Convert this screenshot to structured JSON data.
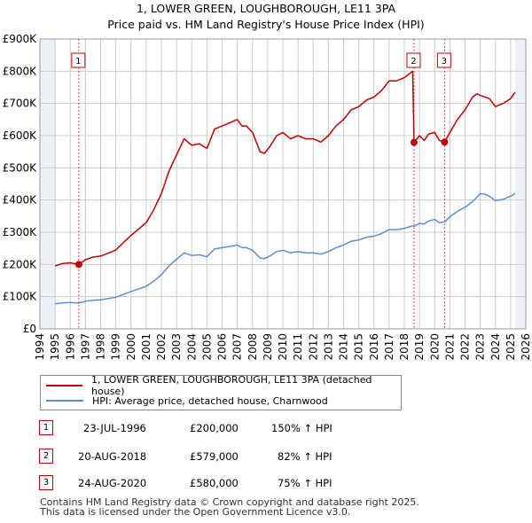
{
  "title": "1, LOWER GREEN, LOUGHBOROUGH, LE11 3PA",
  "subtitle": "Price paid vs. HM Land Registry's House Price Index (HPI)",
  "colors": {
    "property": "#c00000",
    "hpi": "#5b8fd0",
    "grid": "#cccccc",
    "band": "#eef0f7"
  },
  "chart_data": {
    "type": "line",
    "xlim": [
      1994,
      2026
    ],
    "ylim": [
      0,
      900000
    ],
    "x_ticks": [
      "1994",
      "1995",
      "1996",
      "1997",
      "1998",
      "1999",
      "2000",
      "2001",
      "2002",
      "2003",
      "2004",
      "2005",
      "2006",
      "2007",
      "2008",
      "2009",
      "2010",
      "2011",
      "2012",
      "2013",
      "2014",
      "2015",
      "2016",
      "2017",
      "2018",
      "2019",
      "2020",
      "2021",
      "2022",
      "2023",
      "2024",
      "2025",
      "2026"
    ],
    "y_ticks": [
      {
        "value": 0,
        "label": "£0"
      },
      {
        "value": 100000,
        "label": "£100K"
      },
      {
        "value": 200000,
        "label": "£200K"
      },
      {
        "value": 300000,
        "label": "£300K"
      },
      {
        "value": 400000,
        "label": "£400K"
      },
      {
        "value": 500000,
        "label": "£500K"
      },
      {
        "value": 600000,
        "label": "£600K"
      },
      {
        "value": 700000,
        "label": "£700K"
      },
      {
        "value": 800000,
        "label": "£800K"
      },
      {
        "value": 900000,
        "label": "£900K"
      }
    ],
    "data_range": [
      1995.0,
      2025.3
    ],
    "series": [
      {
        "name": "1, LOWER GREEN, LOUGHBOROUGH, LE11 3PA (detached house)",
        "x": [
          1995.0,
          1995.5,
          1996.0,
          1996.56,
          1997.0,
          1997.5,
          1998.0,
          1998.5,
          1999.0,
          1999.5,
          2000.0,
          2000.5,
          2001.0,
          2001.5,
          2002.0,
          2002.5,
          2003.0,
          2003.5,
          2004.0,
          2004.5,
          2005.0,
          2005.5,
          2006.0,
          2006.5,
          2007.0,
          2007.3,
          2007.6,
          2008.0,
          2008.5,
          2008.8,
          2009.2,
          2009.6,
          2010.0,
          2010.5,
          2011.0,
          2011.5,
          2012.0,
          2012.5,
          2013.0,
          2013.5,
          2014.0,
          2014.5,
          2015.0,
          2015.5,
          2016.0,
          2016.5,
          2017.0,
          2017.5,
          2018.0,
          2018.4,
          2018.55,
          2018.64,
          2019.0,
          2019.3,
          2019.6,
          2020.0,
          2020.3,
          2020.65,
          2021.0,
          2021.5,
          2022.0,
          2022.5,
          2022.8,
          2023.0,
          2023.3,
          2023.6,
          2024.0,
          2024.5,
          2025.0,
          2025.3
        ],
        "values": [
          195000,
          203000,
          205000,
          200000,
          215000,
          223000,
          226000,
          235000,
          245000,
          268000,
          290000,
          310000,
          330000,
          370000,
          420000,
          490000,
          540000,
          590000,
          570000,
          575000,
          560000,
          620000,
          630000,
          640000,
          650000,
          630000,
          630000,
          610000,
          550000,
          545000,
          570000,
          600000,
          610000,
          590000,
          600000,
          590000,
          590000,
          580000,
          600000,
          630000,
          650000,
          680000,
          690000,
          710000,
          720000,
          740000,
          770000,
          770000,
          780000,
          795000,
          800000,
          579000,
          600000,
          585000,
          605000,
          610000,
          585000,
          580000,
          610000,
          650000,
          680000,
          720000,
          730000,
          725000,
          720000,
          715000,
          690000,
          700000,
          715000,
          735000
        ],
        "color": "#c00000"
      },
      {
        "name": "HPI: Average price, detached house, Charnwood",
        "x": [
          1995.0,
          1995.5,
          1996.0,
          1996.56,
          1997.0,
          1997.5,
          1998.0,
          1998.5,
          1999.0,
          1999.5,
          2000.0,
          2000.5,
          2001.0,
          2001.5,
          2002.0,
          2002.5,
          2003.0,
          2003.5,
          2004.0,
          2004.5,
          2005.0,
          2005.5,
          2006.0,
          2006.5,
          2007.0,
          2007.3,
          2007.6,
          2008.0,
          2008.5,
          2008.8,
          2009.2,
          2009.6,
          2010.0,
          2010.5,
          2011.0,
          2011.5,
          2012.0,
          2012.5,
          2013.0,
          2013.5,
          2014.0,
          2014.5,
          2015.0,
          2015.5,
          2016.0,
          2016.5,
          2017.0,
          2017.5,
          2018.0,
          2018.4,
          2018.55,
          2018.64,
          2019.0,
          2019.3,
          2019.6,
          2020.0,
          2020.3,
          2020.65,
          2021.0,
          2021.5,
          2022.0,
          2022.5,
          2022.8,
          2023.0,
          2023.3,
          2023.6,
          2024.0,
          2024.5,
          2025.0,
          2025.3
        ],
        "values": [
          78000,
          81000,
          82000,
          80000,
          86000,
          89000,
          90000,
          94000,
          98000,
          107000,
          116000,
          124000,
          132000,
          148000,
          168000,
          196000,
          216000,
          236000,
          228000,
          230000,
          224000,
          248000,
          252000,
          256000,
          260000,
          252000,
          252000,
          244000,
          220000,
          218000,
          228000,
          240000,
          244000,
          236000,
          240000,
          236000,
          236000,
          232000,
          240000,
          252000,
          260000,
          272000,
          276000,
          284000,
          288000,
          296000,
          308000,
          308000,
          312000,
          318000,
          320000,
          318000,
          328000,
          325000,
          335000,
          340000,
          330000,
          332000,
          348000,
          365000,
          378000,
          395000,
          410000,
          420000,
          418000,
          412000,
          398000,
          402000,
          412000,
          420000
        ],
        "color": "#5b8fd0"
      }
    ],
    "sale_markers": [
      {
        "label": "1",
        "x": 1996.56,
        "value": 200000
      },
      {
        "label": "2",
        "x": 2018.64,
        "value": 579000
      },
      {
        "label": "3",
        "x": 2020.65,
        "value": 580000
      }
    ]
  },
  "legend": {
    "property": "1, LOWER GREEN, LOUGHBOROUGH, LE11 3PA (detached house)",
    "hpi": "HPI: Average price, detached house, Charnwood"
  },
  "transactions": [
    {
      "num": "1",
      "date": "23-JUL-1996",
      "price": "£200,000",
      "hpi": "150% ↑ HPI"
    },
    {
      "num": "2",
      "date": "20-AUG-2018",
      "price": "£579,000",
      "hpi": "82% ↑ HPI"
    },
    {
      "num": "3",
      "date": "24-AUG-2020",
      "price": "£580,000",
      "hpi": "75% ↑ HPI"
    }
  ],
  "footer": {
    "line1": "Contains HM Land Registry data © Crown copyright and database right 2025.",
    "line2": "This data is licensed under the Open Government Licence v3.0."
  }
}
